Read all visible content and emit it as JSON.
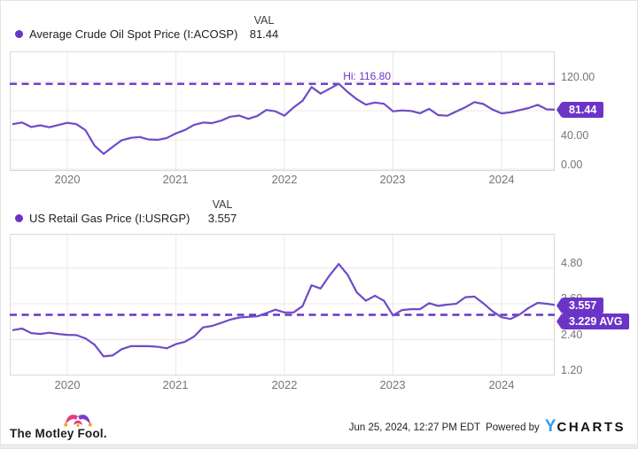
{
  "colors": {
    "accent": "#6c34c6",
    "accent-line": "#6f4bc6",
    "tick": "#757575",
    "grid": "#e8e8e8",
    "border": "#d9d9d9",
    "ycharts-blue": "#2e9bf6",
    "mf-pink": "#e23b80",
    "mf-purple": "#7d3bc8",
    "mf-orange": "#f5a623"
  },
  "charts": [
    {
      "val_header": "VAL",
      "value": "81.44",
      "hi_label": "Hi: 116.80",
      "badge": "81.44"
    },
    {
      "val_header": "VAL",
      "value": "3.557",
      "badge": "3.557",
      "avg_badge": "3.229 AVG"
    }
  ],
  "chart_data": [
    {
      "type": "line",
      "title": "Average Crude Oil Spot Price (I:ACOSP)",
      "xlabel": "",
      "ylabel": "",
      "legend_position": "top-left",
      "grid": true,
      "xlim": [
        2019.469,
        2024.49
      ],
      "ylim": [
        -2.4,
        161.2
      ],
      "x_gridline_years": [
        2020,
        2021,
        2022,
        2023,
        2024
      ],
      "x_tick_labels": [
        "2020",
        "2021",
        "2022",
        "2023",
        "2024"
      ],
      "y_ticks": [
        0,
        40,
        80,
        120
      ],
      "y_tick_labels": [
        "120.00",
        "80.00",
        "40.00",
        "0.00"
      ],
      "dashed_value": 116.8,
      "dashed_label": "Hi: 116.80",
      "last_value": 81.44,
      "series": [
        {
          "name": "Average Crude Oil Spot Price (I:ACOSP)",
          "x_start": 2019.5,
          "x_step": 0.0833333,
          "values": [
            61.7,
            63.9,
            57.7,
            60.0,
            57.3,
            60.4,
            63.4,
            61.6,
            53.3,
            32.2,
            21.0,
            30.4,
            39.5,
            42.8,
            44.0,
            40.6,
            40.1,
            42.7,
            49.0,
            53.6,
            60.5,
            63.8,
            63.0,
            66.4,
            71.8,
            73.3,
            68.9,
            72.8,
            81.0,
            79.2,
            73.2,
            84.4,
            93.5,
            112.4,
            103.4,
            110.1,
            116.8,
            105.4,
            95.6,
            88.2,
            91.1,
            89.4,
            79.2,
            80.4,
            79.7,
            76.5,
            82.5,
            74.0,
            73.1,
            78.9,
            84.7,
            91.8,
            89.1,
            81.6,
            76.4,
            77.8,
            80.9,
            83.6,
            88.0,
            81.8,
            81.44
          ]
        }
      ]
    },
    {
      "type": "line",
      "title": "US Retail Gas Price (I:USRGP)",
      "xlabel": "",
      "ylabel": "",
      "legend_position": "top-left",
      "grid": true,
      "xlim": [
        2019.469,
        2024.49
      ],
      "ylim": [
        1.2,
        5.94
      ],
      "x_gridline_years": [
        2020,
        2021,
        2022,
        2023,
        2024
      ],
      "x_tick_labels": [
        "2020",
        "2021",
        "2022",
        "2023",
        "2024"
      ],
      "y_ticks": [
        1.2,
        2.4,
        3.6,
        4.8
      ],
      "y_tick_labels": [
        "4.80",
        "3.60",
        "2.40",
        "1.20"
      ],
      "dashed_value": 3.229,
      "dashed_label": "3.229 AVG",
      "last_value": 3.557,
      "series": [
        {
          "name": "US Retail Gas Price (I:USRGP)",
          "x_start": 2019.5,
          "x_step": 0.0833333,
          "values": [
            2.72,
            2.77,
            2.62,
            2.59,
            2.63,
            2.59,
            2.56,
            2.55,
            2.44,
            2.23,
            1.84,
            1.87,
            2.08,
            2.18,
            2.18,
            2.18,
            2.16,
            2.11,
            2.25,
            2.33,
            2.5,
            2.81,
            2.86,
            2.96,
            3.07,
            3.14,
            3.16,
            3.18,
            3.29,
            3.4,
            3.31,
            3.31,
            3.52,
            4.22,
            4.11,
            4.55,
            4.93,
            4.56,
            3.98,
            3.7,
            3.87,
            3.7,
            3.21,
            3.39,
            3.42,
            3.42,
            3.62,
            3.53,
            3.57,
            3.6,
            3.82,
            3.84,
            3.61,
            3.35,
            3.15,
            3.09,
            3.24,
            3.46,
            3.63,
            3.6,
            3.557
          ]
        }
      ]
    }
  ],
  "footer": {
    "motley_fool": "The Motley Fool.",
    "timestamp": "Jun 25, 2024, 12:27 PM EDT",
    "powered_by": "Powered by",
    "ycharts_y": "Y",
    "ycharts_rest": "CHARTS"
  }
}
